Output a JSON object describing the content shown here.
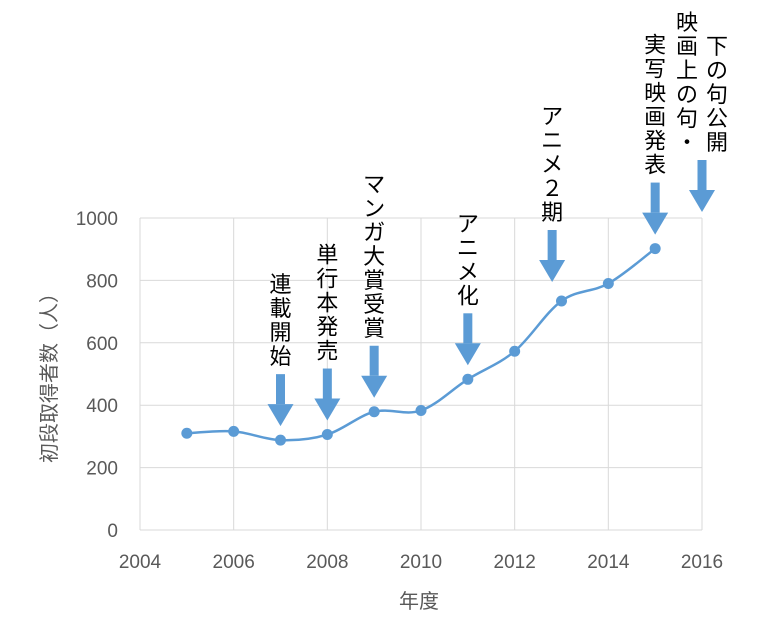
{
  "chart_data": {
    "type": "line",
    "title": "",
    "xlabel": "年度",
    "ylabel": "初段取得者数（人）",
    "xlim": [
      2004,
      2016
    ],
    "ylim": [
      0,
      1000
    ],
    "x_ticks": [
      2004,
      2006,
      2008,
      2010,
      2012,
      2014,
      2016
    ],
    "y_ticks": [
      0,
      200,
      400,
      600,
      800,
      1000
    ],
    "grid": true,
    "legend": "none",
    "series": [
      {
        "x": [
          2005,
          2006,
          2007,
          2008,
          2009,
          2010,
          2011,
          2012,
          2013,
          2014,
          2015
        ],
        "values": [
          310,
          316,
          288,
          306,
          379,
          383,
          483,
          573,
          734,
          790,
          902
        ],
        "color": "#5b9bd5"
      }
    ],
    "annotations": [
      {
        "year": 2007,
        "lines": [
          "連載開始"
        ]
      },
      {
        "year": 2008,
        "lines": [
          "単行本発売"
        ]
      },
      {
        "year": 2009,
        "lines": [
          "マンガ大賞受賞"
        ]
      },
      {
        "year": 2011,
        "lines": [
          "アニメ化"
        ]
      },
      {
        "year": 2012.8,
        "lines": [
          "アニメ２期"
        ]
      },
      {
        "year": 2015,
        "lines": [
          "実写映画発表"
        ]
      },
      {
        "year": 2016,
        "lines": [
          "下の句公開",
          "映画上の句・"
        ]
      }
    ],
    "colors": {
      "line": "#5b9bd5",
      "arrow": "#5b9bd5",
      "grid": "#d9d9d9",
      "axis_text": "#595959"
    }
  }
}
